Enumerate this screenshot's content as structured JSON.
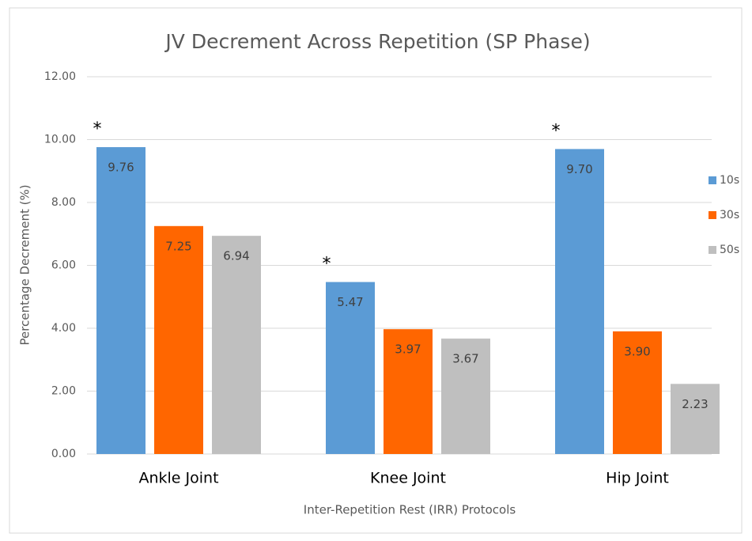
{
  "chart_data": {
    "type": "bar",
    "title": "JV Decrement Across Repetition (SP Phase)",
    "y_label": "Percentage Decrement (%)",
    "x_label": "Inter-Repetition Rest (IRR) Protocols",
    "categories": [
      "Ankle Joint",
      "Knee Joint",
      "Hip Joint"
    ],
    "series": [
      {
        "name": "10s",
        "color": "#5b9bd5",
        "values": [
          9.76,
          5.47,
          9.7
        ],
        "value_labels": [
          "9.76",
          "5.47",
          "9.70"
        ]
      },
      {
        "name": "30s",
        "color": "#ff6600",
        "values": [
          7.25,
          3.97,
          3.9
        ],
        "value_labels": [
          "7.25",
          "3.97",
          "3.90"
        ]
      },
      {
        "name": "50s",
        "color": "#bfbfbf",
        "values": [
          6.94,
          3.67,
          2.23
        ],
        "value_labels": [
          "6.94",
          "3.67",
          "2.23"
        ]
      }
    ],
    "annotations": [
      {
        "text": "*",
        "category": "Ankle Joint",
        "series": "10s"
      },
      {
        "text": "*",
        "category": "Knee Joint",
        "series": "10s"
      },
      {
        "text": "*",
        "category": "Hip Joint",
        "series": "10s"
      }
    ],
    "ylim": [
      0,
      12
    ],
    "yticks": [
      {
        "value": 0,
        "label": "0.00"
      },
      {
        "value": 2,
        "label": "2.00"
      },
      {
        "value": 4,
        "label": "4.00"
      },
      {
        "value": 6,
        "label": "6.00"
      },
      {
        "value": 8,
        "label": "8.00"
      },
      {
        "value": 10,
        "label": "10.00"
      },
      {
        "value": 12,
        "label": "12.00"
      }
    ],
    "grid": true,
    "legend": "right"
  }
}
